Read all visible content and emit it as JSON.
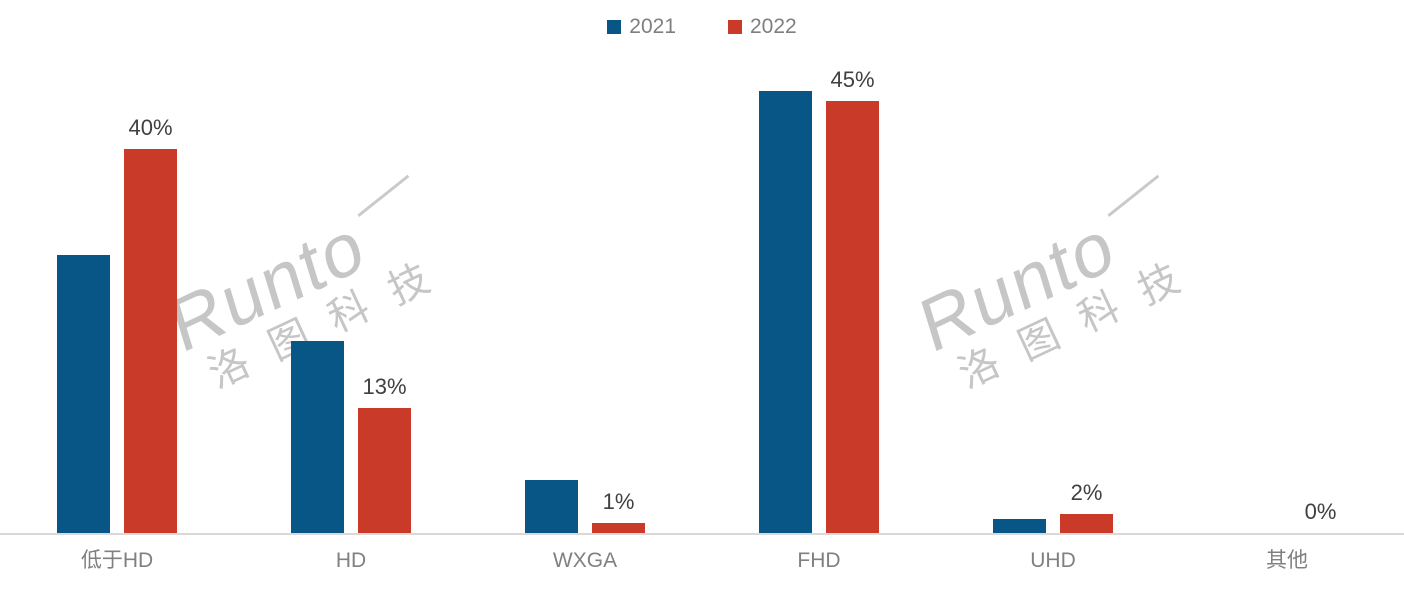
{
  "chart_data": {
    "type": "bar",
    "title": "",
    "xlabel": "",
    "ylabel": "",
    "value_unit": "%",
    "ylim": [
      0,
      50
    ],
    "grid": false,
    "legend_position": "top-center",
    "categories": [
      "低于HD",
      "HD",
      "WXGA",
      "FHD",
      "UHD",
      "其他"
    ],
    "series": [
      {
        "name": "2021",
        "color": "#075685",
        "values": [
          29,
          20,
          5.5,
          46,
          1.5,
          0
        ],
        "labels": [
          "",
          "",
          "",
          "",
          "",
          ""
        ]
      },
      {
        "name": "2022",
        "color": "#c93a28",
        "values": [
          40,
          13,
          1,
          45,
          2,
          0
        ],
        "labels": [
          "40%",
          "13%",
          "1%",
          "45%",
          "2%",
          "0%"
        ]
      }
    ]
  },
  "legend": {
    "items": [
      {
        "label": "2021",
        "color": "#075685"
      },
      {
        "label": "2022",
        "color": "#c93a28"
      }
    ]
  },
  "watermark": {
    "brand": "Runto",
    "cn": "洛图科技"
  },
  "colors": {
    "background": "#ffffff",
    "axis_line": "#d9d9d9",
    "category_text": "#808080",
    "legend_text": "#7f7f7f",
    "value_label_text": "#404040",
    "watermark_text": "#c6c6c6",
    "series_2021": "#075685",
    "series_2022": "#c93a28"
  }
}
